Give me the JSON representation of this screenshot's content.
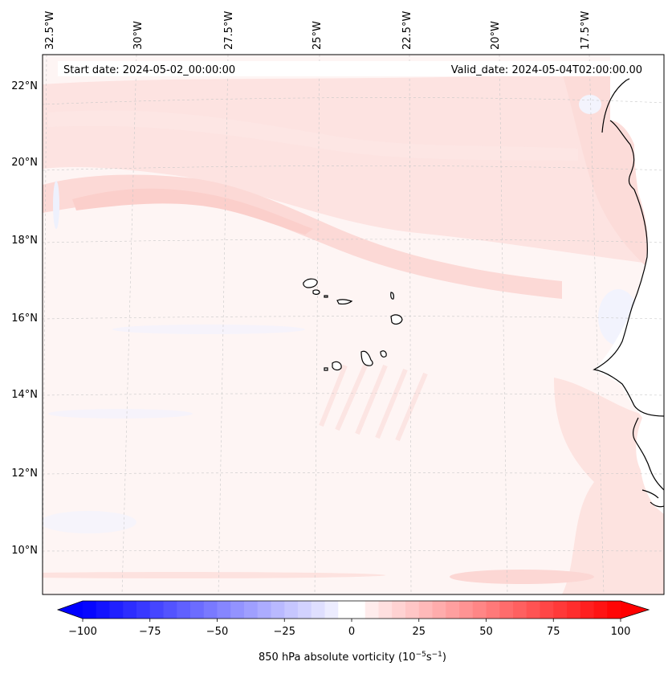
{
  "map": {
    "start_date": "Start date: 2024-05-02_00:00:00",
    "valid_date": "Valid_date: 2024-05-04T02:00:00.00",
    "lon_labels": [
      "32.5°W",
      "30°W",
      "27.5°W",
      "25°W",
      "22.5°W",
      "20°W",
      "17.5°W"
    ],
    "lat_labels": [
      "22°N",
      "20°N",
      "18°N",
      "16°N",
      "14°N",
      "12°N",
      "10°N"
    ],
    "land_color": "#ffffff",
    "coast_color": "#000000"
  },
  "colorbar": {
    "label_prefix": "850 hPa absolute vorticity (10",
    "exp1": "−5",
    "mid": "s",
    "exp2": "−1",
    "suffix": ")",
    "ticks": [
      "−100",
      "−75",
      "−50",
      "−25",
      "0",
      "25",
      "50",
      "75",
      "100"
    ],
    "min": -100,
    "max": 100,
    "step": 5,
    "neg_color": "#0000ff",
    "pos_color": "#ff0000"
  }
}
